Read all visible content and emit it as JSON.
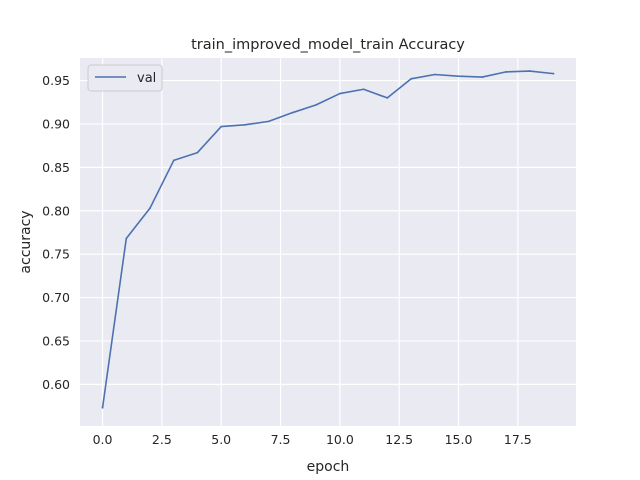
{
  "chart_data": {
    "type": "line",
    "title": "train_improved_model_train Accuracy",
    "xlabel": "epoch",
    "ylabel": "accuracy",
    "xlim": [
      -0.95,
      19.95
    ],
    "ylim": [
      0.552,
      0.976
    ],
    "x_ticks": [
      0.0,
      2.5,
      5.0,
      7.5,
      10.0,
      12.5,
      15.0,
      17.5
    ],
    "x_tick_labels": [
      "0.0",
      "2.5",
      "5.0",
      "7.5",
      "10.0",
      "12.5",
      "15.0",
      "17.5"
    ],
    "y_ticks": [
      0.6,
      0.65,
      0.7,
      0.75,
      0.8,
      0.85,
      0.9,
      0.95
    ],
    "y_tick_labels": [
      "0.60",
      "0.65",
      "0.70",
      "0.75",
      "0.80",
      "0.85",
      "0.90",
      "0.95"
    ],
    "grid": true,
    "legend_position": "top-left",
    "colors": {
      "line": "#4c72b0",
      "plot_bg": "#eaeaf2",
      "grid": "#ffffff",
      "text": "#262626"
    },
    "series": [
      {
        "name": "val",
        "x": [
          0,
          1,
          2,
          3,
          4,
          5,
          6,
          7,
          8,
          9,
          10,
          11,
          12,
          13,
          14,
          15,
          16,
          17,
          18,
          19
        ],
        "values": [
          0.573,
          0.768,
          0.803,
          0.858,
          0.867,
          0.897,
          0.899,
          0.903,
          0.913,
          0.922,
          0.935,
          0.94,
          0.93,
          0.952,
          0.957,
          0.955,
          0.954,
          0.96,
          0.961,
          0.958
        ]
      }
    ]
  }
}
